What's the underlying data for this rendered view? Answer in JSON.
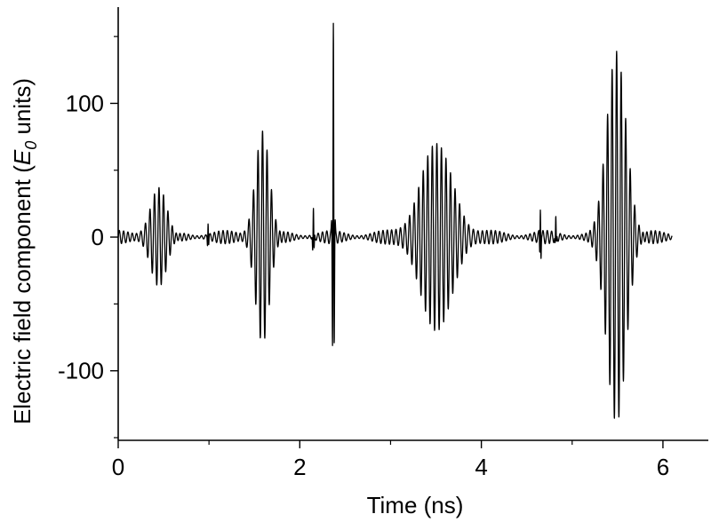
{
  "chart_data": {
    "type": "line",
    "title": "",
    "xlabel": "Time (ns)",
    "ylabel": {
      "prefix": "Electric field component (",
      "symbol": "E",
      "subscript": "0",
      "suffix": " units)"
    },
    "xlim": [
      0,
      6.5
    ],
    "ylim": [
      -152,
      172
    ],
    "x_ticks": [
      {
        "value": 0,
        "label": "0"
      },
      {
        "value": 2,
        "label": "2"
      },
      {
        "value": 4,
        "label": "4"
      },
      {
        "value": 6,
        "label": "6"
      }
    ],
    "x_minor_ticks": [
      1,
      3,
      5
    ],
    "y_ticks": [
      {
        "value": -100,
        "label": "-100"
      },
      {
        "value": 0,
        "label": "0"
      },
      {
        "value": 100,
        "label": "100"
      }
    ],
    "y_minor_ticks": [
      -150,
      -50,
      50,
      150
    ],
    "grid": false,
    "legend": "none",
    "line_color": "#000000",
    "series": [
      {
        "x_range": [
          0,
          6.1
        ],
        "description_points": [
          {
            "t": 0.0,
            "v": 0
          },
          {
            "t": 0.2,
            "v": 8
          },
          {
            "t": 0.45,
            "v": 35
          },
          {
            "t": 0.46,
            "v": -37
          },
          {
            "t": 0.7,
            "v": 5
          },
          {
            "t": 1.0,
            "v": 13
          },
          {
            "t": 1.58,
            "v": 77
          },
          {
            "t": 1.6,
            "v": -77
          },
          {
            "t": 1.9,
            "v": 10
          },
          {
            "t": 2.14,
            "v": 20
          },
          {
            "t": 2.36,
            "v": 165
          },
          {
            "t": 2.39,
            "v": -100
          },
          {
            "t": 2.6,
            "v": 5
          },
          {
            "t": 3.5,
            "v": 74
          },
          {
            "t": 3.52,
            "v": -76
          },
          {
            "t": 4.0,
            "v": 10
          },
          {
            "t": 4.65,
            "v": 25
          },
          {
            "t": 4.8,
            "v": 8
          },
          {
            "t": 5.5,
            "v": 137
          },
          {
            "t": 5.48,
            "v": -137
          },
          {
            "t": 6.1,
            "v": -2
          }
        ]
      }
    ]
  }
}
